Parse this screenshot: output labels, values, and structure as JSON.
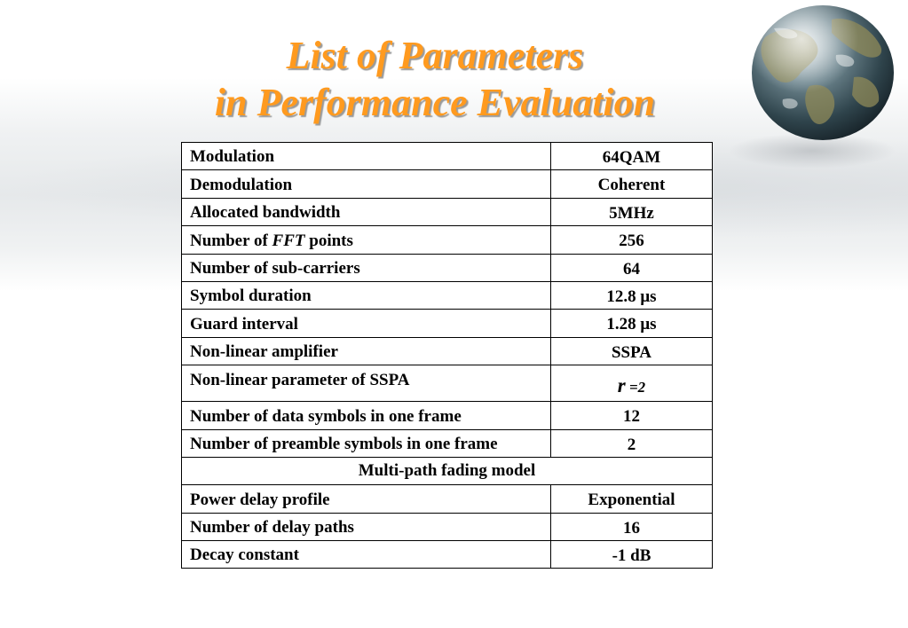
{
  "slide": {
    "title_line1": "List of Parameters",
    "title_line2": "in Performance Evaluation",
    "colors": {
      "title": "#ff9a1f",
      "title_shadow": "#9a9a9a",
      "table_border": "#000000"
    },
    "decor": {
      "globe": "earth-globe-icon"
    }
  },
  "table": {
    "rows": [
      {
        "name": "Modulation",
        "value": "64QAM"
      },
      {
        "name": "Demodulation",
        "value": "Coherent"
      },
      {
        "name": "Allocated bandwidth",
        "value": "5MHz"
      },
      {
        "name_prefix": "Number of ",
        "name_italic": "FFT",
        "name_suffix": " points",
        "value": "256"
      },
      {
        "name": "Number of sub-carriers",
        "value": "64"
      },
      {
        "name": "Symbol duration",
        "value": "12.8 μs"
      },
      {
        "name": "Guard interval",
        "value": "1.28 μs"
      },
      {
        "name": "Non-linear amplifier",
        "value": "SSPA"
      },
      {
        "name": "Non-linear parameter of SSPA",
        "value_symbol": "r",
        "value_rest": " =2"
      },
      {
        "name": "Number of data symbols in one frame",
        "value": "12"
      },
      {
        "name": "Number of preamble symbols in one frame",
        "value": "2"
      }
    ],
    "section_header": "Multi-path fading model",
    "fading_rows": [
      {
        "name": "Power delay profile",
        "value": "Exponential"
      },
      {
        "name": "Number of delay paths",
        "value": "16"
      },
      {
        "name": "Decay constant",
        "value": "-1 dB"
      }
    ]
  }
}
